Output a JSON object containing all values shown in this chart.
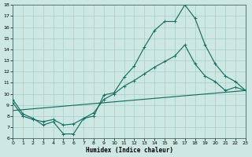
{
  "xlabel": "Humidex (Indice chaleur)",
  "bg_color": "#cde8e2",
  "grid_color": "#a8cdc8",
  "line_color": "#1a6e62",
  "xlim": [
    0,
    23
  ],
  "ylim": [
    6,
    18
  ],
  "xticks": [
    0,
    1,
    2,
    3,
    4,
    5,
    6,
    7,
    8,
    9,
    10,
    11,
    12,
    13,
    14,
    15,
    16,
    17,
    18,
    19,
    20,
    21,
    22,
    23
  ],
  "yticks": [
    6,
    7,
    8,
    9,
    10,
    11,
    12,
    13,
    14,
    15,
    16,
    17,
    18
  ],
  "line1_x": [
    0,
    1,
    2,
    3,
    4,
    5,
    6,
    7,
    8,
    9,
    10,
    11,
    12,
    13,
    14,
    15,
    16,
    17,
    18,
    19,
    20,
    21,
    22,
    23
  ],
  "line1_y": [
    9.5,
    8.2,
    7.8,
    7.2,
    7.5,
    6.4,
    6.4,
    7.8,
    8.0,
    9.9,
    10.1,
    11.5,
    12.5,
    14.2,
    15.7,
    16.5,
    16.5,
    18.0,
    16.8,
    14.4,
    12.7,
    11.6,
    11.1,
    10.3
  ],
  "line2_x": [
    0,
    1,
    2,
    3,
    4,
    5,
    6,
    7,
    8,
    9,
    10,
    11,
    12,
    13,
    14,
    15,
    16,
    17,
    18,
    19,
    20,
    21,
    22,
    23
  ],
  "line2_y": [
    9.2,
    8.0,
    7.7,
    7.5,
    7.7,
    7.2,
    7.3,
    7.8,
    8.3,
    9.5,
    10.0,
    10.7,
    11.2,
    11.8,
    12.4,
    12.9,
    13.4,
    14.4,
    12.7,
    11.6,
    11.1,
    10.3,
    10.6,
    10.3
  ],
  "line3_x": [
    0,
    23
  ],
  "line3_y": [
    8.5,
    10.3
  ]
}
